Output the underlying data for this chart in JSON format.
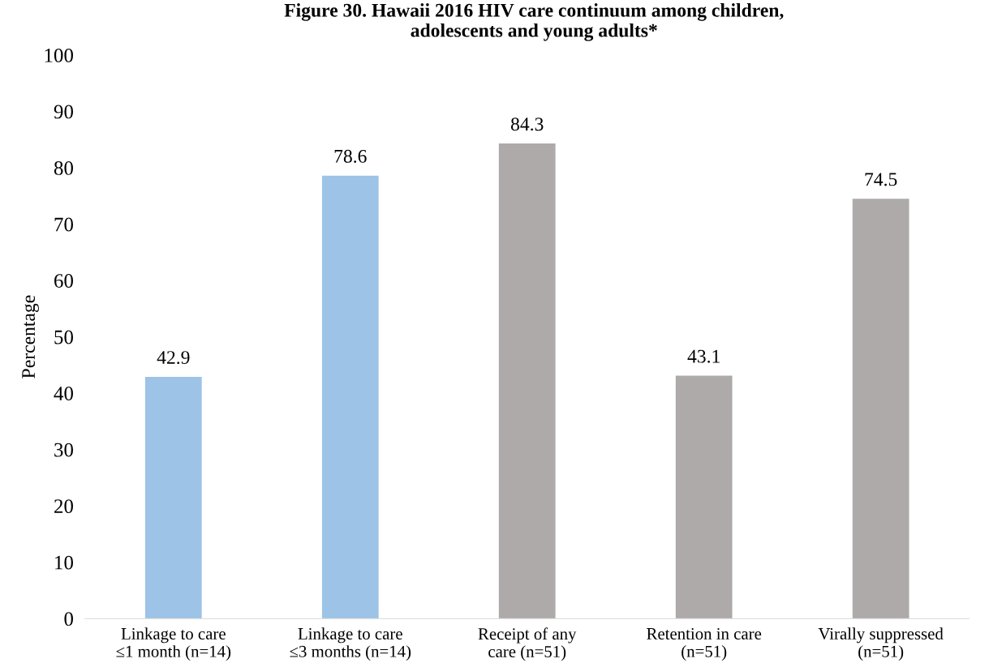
{
  "chart_data": {
    "type": "bar",
    "title": "Figure 30. Hawaii 2016 HIV care continuum among children,\nadolescents and young adults*",
    "ylabel": "Percentage",
    "categories": [
      "Linkage to care\n≤1 month (n=14)",
      "Linkage to care\n≤3 months (n=14)",
      "Receipt of any\ncare (n=51)",
      "Retention in care\n(n=51)",
      "Virally suppressed\n(n=51)"
    ],
    "values": [
      42.9,
      78.6,
      84.3,
      43.1,
      74.5
    ],
    "colors": [
      "#9dc3e6",
      "#9dc3e6",
      "#aeaaaa",
      "#aeaaaa",
      "#aeaaaa"
    ],
    "data_labels": true,
    "ylim": [
      0,
      100
    ],
    "yticks": [
      0,
      10,
      20,
      30,
      40,
      50,
      60,
      70,
      80,
      90,
      100
    ],
    "grid": false,
    "legend": false
  }
}
